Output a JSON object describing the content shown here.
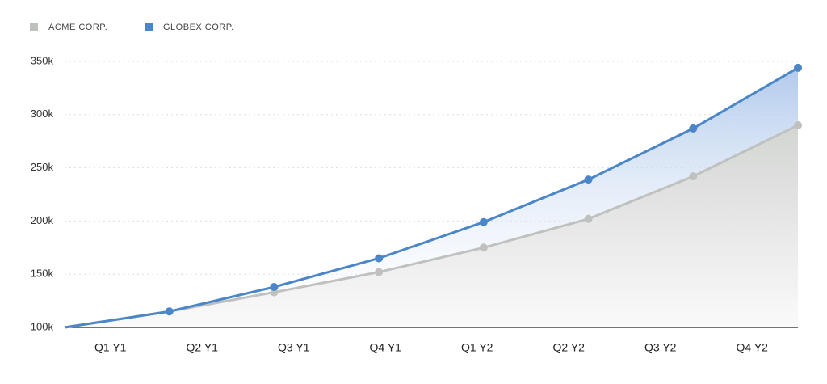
{
  "chart_data": {
    "type": "area-line",
    "categories": [
      "Q1 Y1",
      "Q2 Y1",
      "Q3 Y1",
      "Q4 Y1",
      "Q1 Y2",
      "Q2 Y2",
      "Q3 Y2",
      "Q4 Y2"
    ],
    "series": [
      {
        "name": "ACME CORP.",
        "color": "#bfc1bf",
        "values": [
          100000,
          115000,
          133000,
          152000,
          175000,
          202000,
          242000,
          290000
        ]
      },
      {
        "name": "GLOBEX CORP.",
        "color": "#4a86c8",
        "values": [
          100000,
          115000,
          138000,
          165000,
          199000,
          239000,
          287000,
          344000
        ]
      }
    ],
    "ylim": [
      100000,
      350000
    ],
    "yticks": [
      {
        "value": 100000,
        "label": "100k"
      },
      {
        "value": 150000,
        "label": "150k"
      },
      {
        "value": 200000,
        "label": "200k"
      },
      {
        "value": 250000,
        "label": "250k"
      },
      {
        "value": 300000,
        "label": "300k"
      },
      {
        "value": 350000,
        "label": "350k"
      }
    ],
    "grid": true
  }
}
